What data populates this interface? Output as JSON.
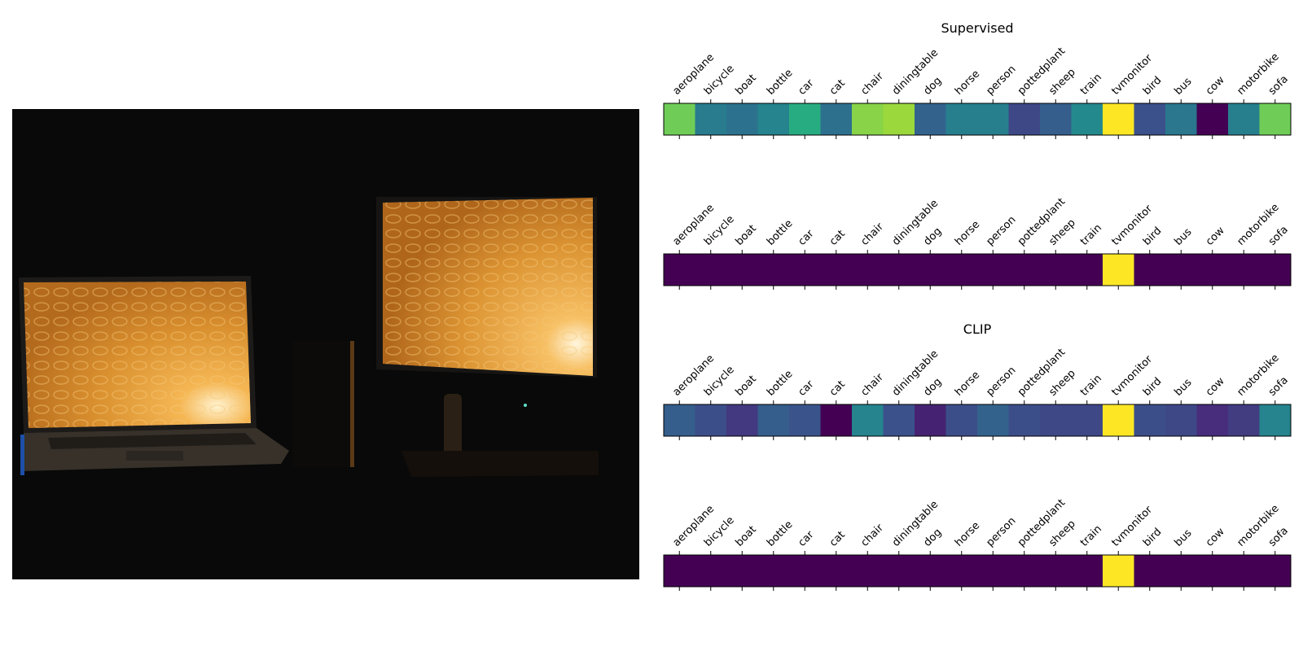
{
  "image": {
    "description_icon": "photo-laptop-and-monitor-dark-room"
  },
  "chart_data": [
    {
      "type": "heatmap",
      "title": "Supervised",
      "categories": [
        "aeroplane",
        "bicycle",
        "boat",
        "bottle",
        "car",
        "cat",
        "chair",
        "diningtable",
        "dog",
        "horse",
        "person",
        "pottedplant",
        "sheep",
        "train",
        "tvmonitor",
        "bird",
        "bus",
        "cow",
        "motorbike",
        "sofa"
      ],
      "values": [
        0.78,
        0.42,
        0.38,
        0.45,
        0.62,
        0.37,
        0.82,
        0.85,
        0.32,
        0.43,
        0.43,
        0.22,
        0.3,
        0.47,
        1.0,
        0.25,
        0.4,
        0.0,
        0.43,
        0.78
      ],
      "colormap": "viridis"
    },
    {
      "type": "heatmap",
      "title": "",
      "categories": [
        "aeroplane",
        "bicycle",
        "boat",
        "bottle",
        "car",
        "cat",
        "chair",
        "diningtable",
        "dog",
        "horse",
        "person",
        "pottedplant",
        "sheep",
        "train",
        "tvmonitor",
        "bird",
        "bus",
        "cow",
        "motorbike",
        "sofa"
      ],
      "values": [
        0,
        0,
        0,
        0,
        0,
        0,
        0,
        0,
        0,
        0,
        0,
        0,
        0,
        0,
        1,
        0,
        0,
        0,
        0,
        0
      ],
      "colormap": "viridis",
      "note_fill": "#21918c"
    },
    {
      "type": "heatmap",
      "title": "CLIP",
      "categories": [
        "aeroplane",
        "bicycle",
        "boat",
        "bottle",
        "car",
        "cat",
        "chair",
        "diningtable",
        "dog",
        "horse",
        "person",
        "pottedplant",
        "sheep",
        "train",
        "tvmonitor",
        "bird",
        "bus",
        "cow",
        "motorbike",
        "sofa"
      ],
      "values": [
        0.3,
        0.24,
        0.17,
        0.3,
        0.26,
        0.0,
        0.45,
        0.25,
        0.1,
        0.24,
        0.32,
        0.24,
        0.22,
        0.22,
        1.0,
        0.24,
        0.22,
        0.13,
        0.18,
        0.45
      ],
      "colormap": "viridis"
    },
    {
      "type": "heatmap",
      "title": "",
      "categories": [
        "aeroplane",
        "bicycle",
        "boat",
        "bottle",
        "car",
        "cat",
        "chair",
        "diningtable",
        "dog",
        "horse",
        "person",
        "pottedplant",
        "sheep",
        "train",
        "tvmonitor",
        "bird",
        "bus",
        "cow",
        "motorbike",
        "sofa"
      ],
      "values": [
        0,
        0,
        0,
        0,
        0,
        0,
        0,
        0,
        0,
        0,
        0,
        0,
        0,
        0,
        1,
        0,
        0,
        0,
        0,
        0
      ],
      "colormap": "viridis",
      "note_fill": "#21918c"
    }
  ],
  "colors": {
    "viridis_min": "#440154",
    "viridis_max": "#fde725",
    "onehot_zero": "#21918c",
    "onehot_one": "#fde725"
  }
}
